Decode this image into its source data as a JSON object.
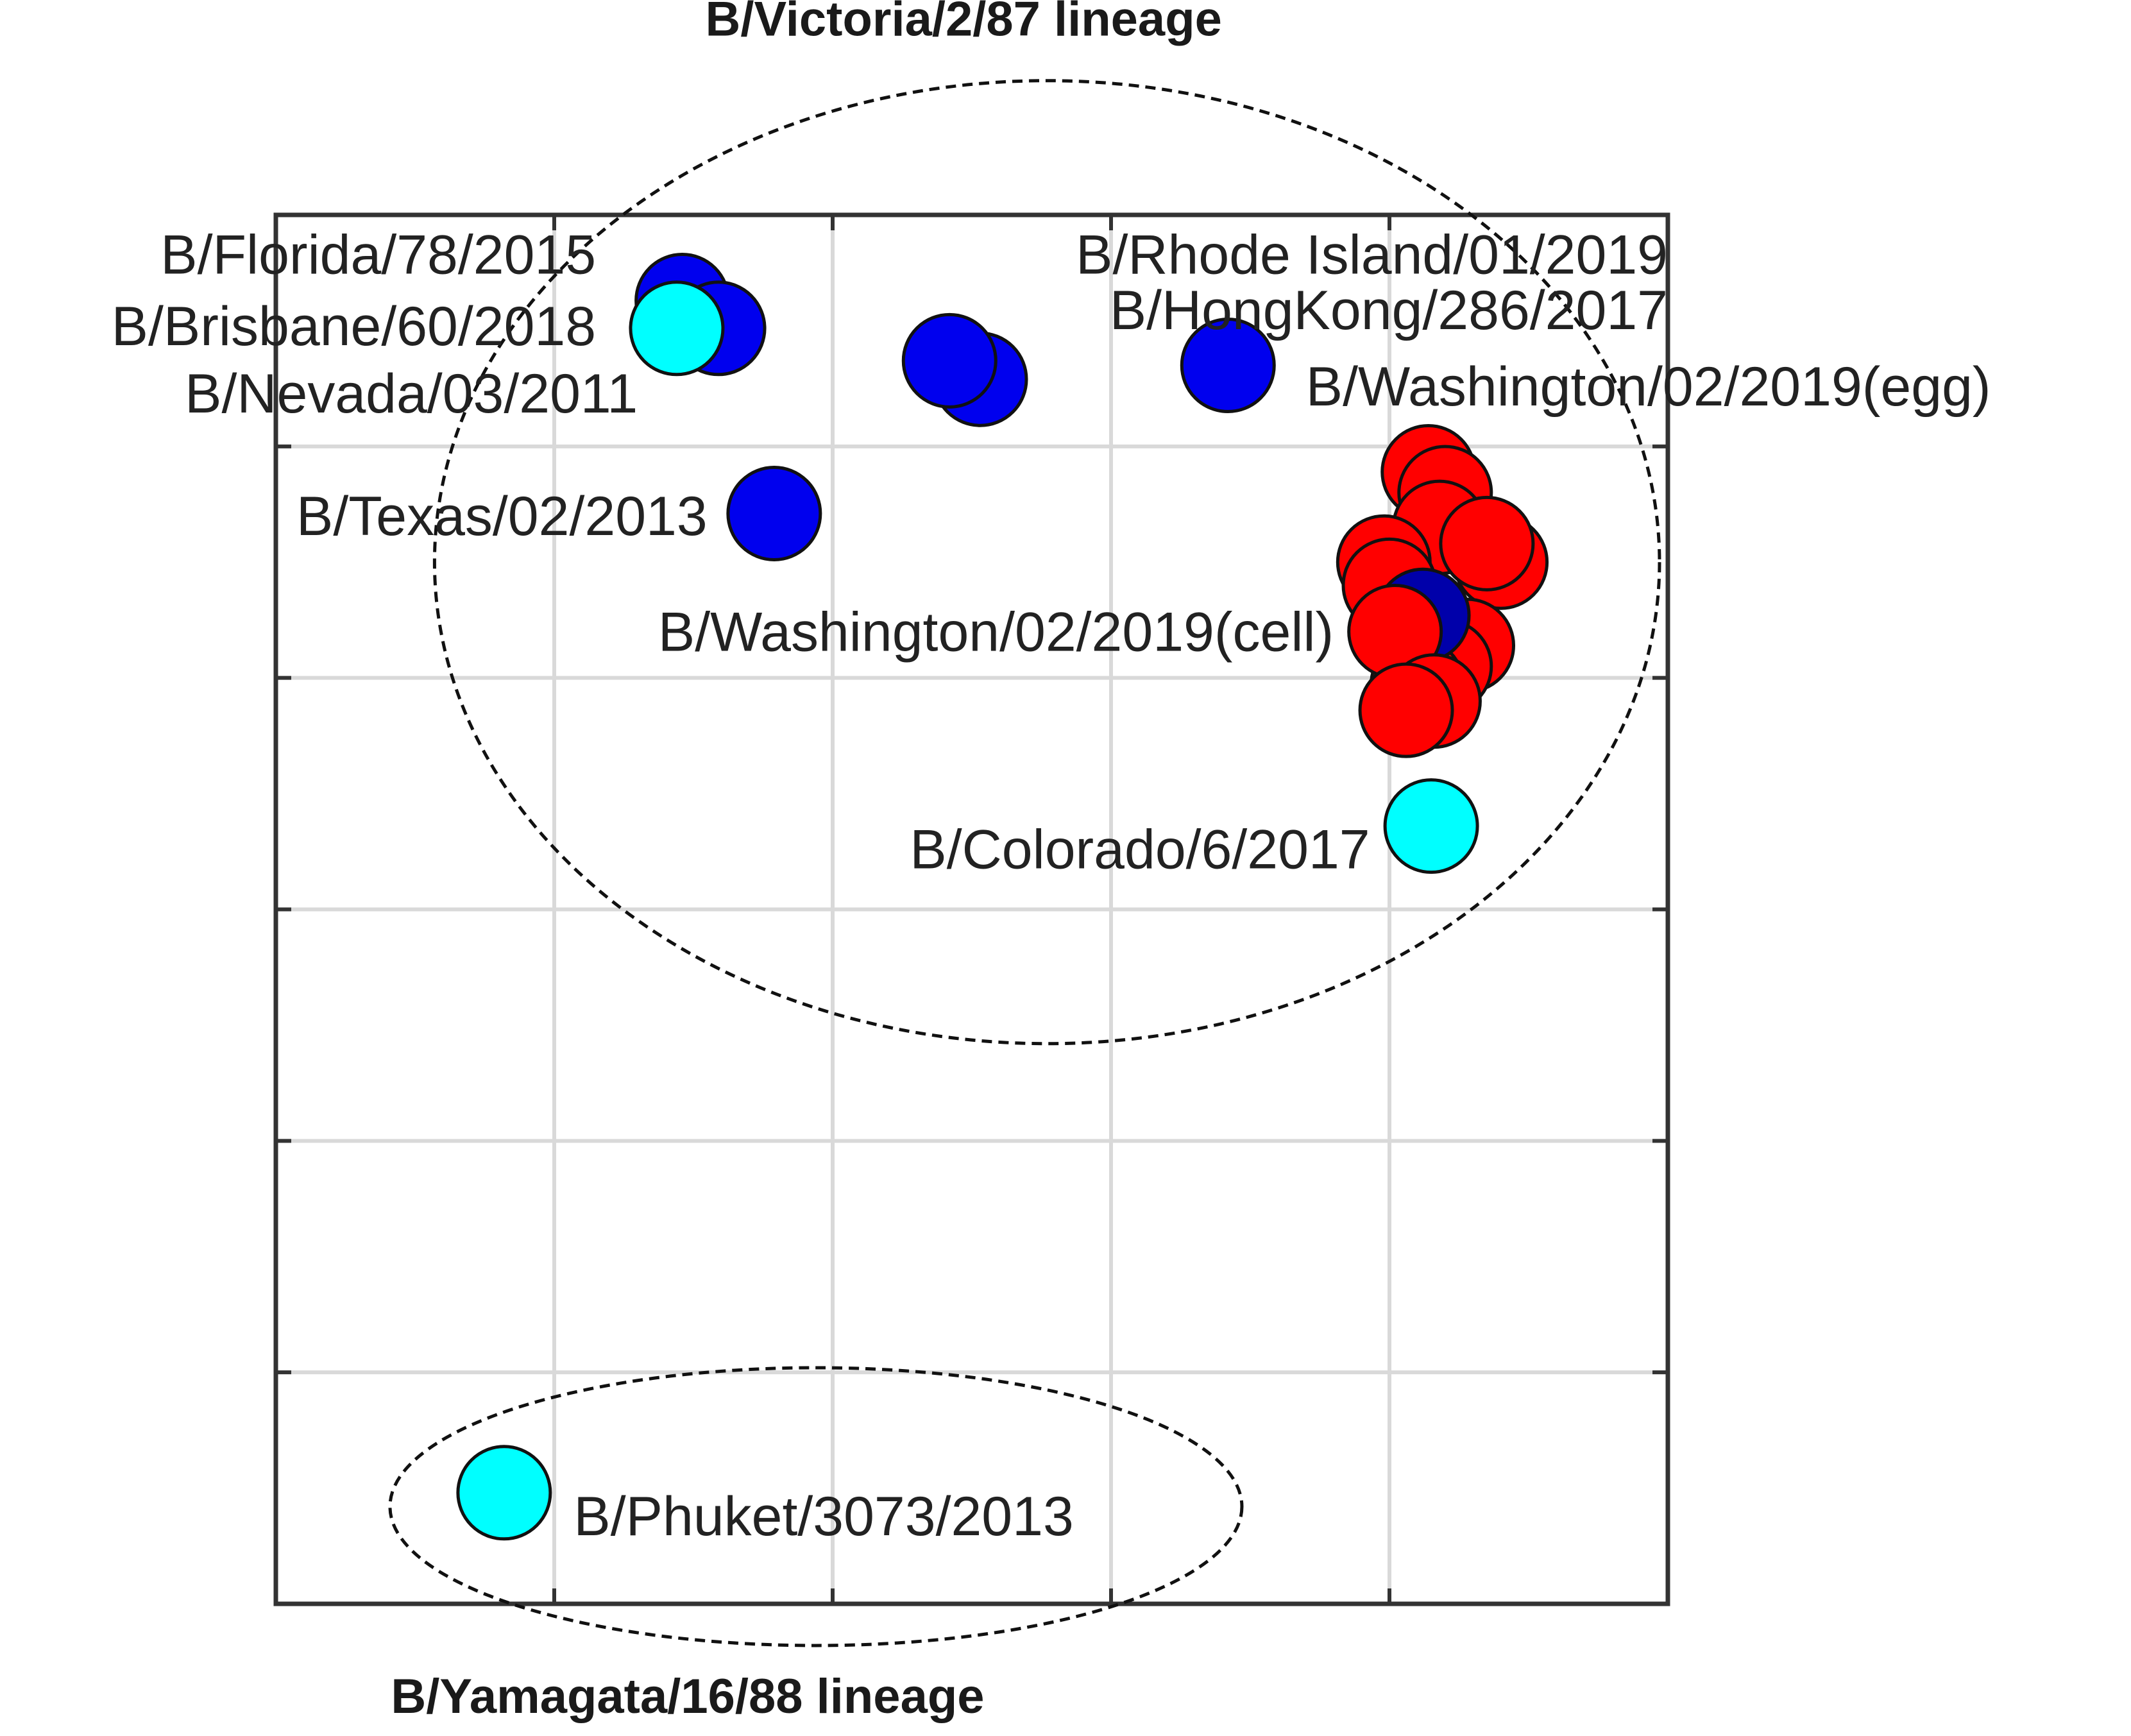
{
  "chart_data": {
    "type": "scatter",
    "title": "",
    "xlabel": "",
    "ylabel": "",
    "xlim": [
      0,
      5
    ],
    "ylim": [
      0,
      6
    ],
    "grid": true,
    "lineages": [
      {
        "label": "B/Victoria/2/87 lineage",
        "center": [
          2.77,
          4.5
        ],
        "radius": [
          2.2,
          2.08
        ]
      },
      {
        "label": "B/Yamagata/16/88 lineage",
        "center": [
          1.94,
          0.42
        ],
        "radius": [
          1.53,
          0.6
        ]
      }
    ],
    "points": [
      {
        "x": 1.46,
        "y": 5.63,
        "color": "#0000ee"
      },
      {
        "x": 1.59,
        "y": 5.51,
        "color": "#0000ee"
      },
      {
        "x": 1.44,
        "y": 5.51,
        "color": "#00ffff"
      },
      {
        "x": 2.53,
        "y": 5.29,
        "color": "#0000ee"
      },
      {
        "x": 2.42,
        "y": 5.37,
        "color": "#0000ee"
      },
      {
        "x": 3.42,
        "y": 5.35,
        "color": "#0000ee"
      },
      {
        "x": 1.79,
        "y": 4.71,
        "color": "#0000ee"
      },
      {
        "x": 4.14,
        "y": 4.89,
        "color": "#ff0000"
      },
      {
        "x": 4.2,
        "y": 4.8,
        "color": "#ff0000"
      },
      {
        "x": 4.18,
        "y": 4.65,
        "color": "#ff0000"
      },
      {
        "x": 4.4,
        "y": 4.5,
        "color": "#ff0000"
      },
      {
        "x": 4.35,
        "y": 4.58,
        "color": "#ff0000"
      },
      {
        "x": 3.98,
        "y": 4.5,
        "color": "#ff0000"
      },
      {
        "x": 4.0,
        "y": 4.4,
        "color": "#ff0000"
      },
      {
        "x": 4.28,
        "y": 4.14,
        "color": "#ff0000"
      },
      {
        "x": 4.2,
        "y": 4.05,
        "color": "#ff0000"
      },
      {
        "x": 4.1,
        "y": 3.97,
        "color": "#ff0000"
      },
      {
        "x": 4.12,
        "y": 4.27,
        "color": "#0000aa"
      },
      {
        "x": 4.02,
        "y": 4.2,
        "color": "#ff0000"
      },
      {
        "x": 4.16,
        "y": 3.9,
        "color": "#ff0000"
      },
      {
        "x": 4.06,
        "y": 3.86,
        "color": "#ff0000"
      },
      {
        "x": 4.15,
        "y": 3.36,
        "color": "#00ffff"
      },
      {
        "x": 0.82,
        "y": 0.48,
        "color": "#00ffff"
      }
    ],
    "labels": [
      {
        "text": "B/Florida/78/2015",
        "x": 1.15,
        "y": 5.83,
        "anchor": "end"
      },
      {
        "text": "B/Brisbane/60/2018",
        "x": 1.15,
        "y": 5.52,
        "anchor": "end"
      },
      {
        "text": "B/Nevada/03/2011",
        "x": 1.3,
        "y": 5.23,
        "anchor": "end"
      },
      {
        "text": "B/Texas/02/2013",
        "x": 1.55,
        "y": 4.7,
        "anchor": "end"
      },
      {
        "text": "B/Rhode Island/01/2019",
        "x": 5.0,
        "y": 5.83,
        "anchor": "end"
      },
      {
        "text": "B/HongKong/286/2017",
        "x": 5.0,
        "y": 5.59,
        "anchor": "end"
      },
      {
        "text": "B/Washington/02/2019(egg)",
        "x": 3.7,
        "y": 5.26,
        "anchor": "start"
      },
      {
        "text": "B/Washington/02/2019(cell)",
        "x": 3.8,
        "y": 4.2,
        "anchor": "end"
      },
      {
        "text": "B/Colorado/6/2017",
        "x": 3.93,
        "y": 3.26,
        "anchor": "end"
      },
      {
        "text": "B/Phuket/3073/2013",
        "x": 1.07,
        "y": 0.38,
        "anchor": "start"
      }
    ]
  }
}
